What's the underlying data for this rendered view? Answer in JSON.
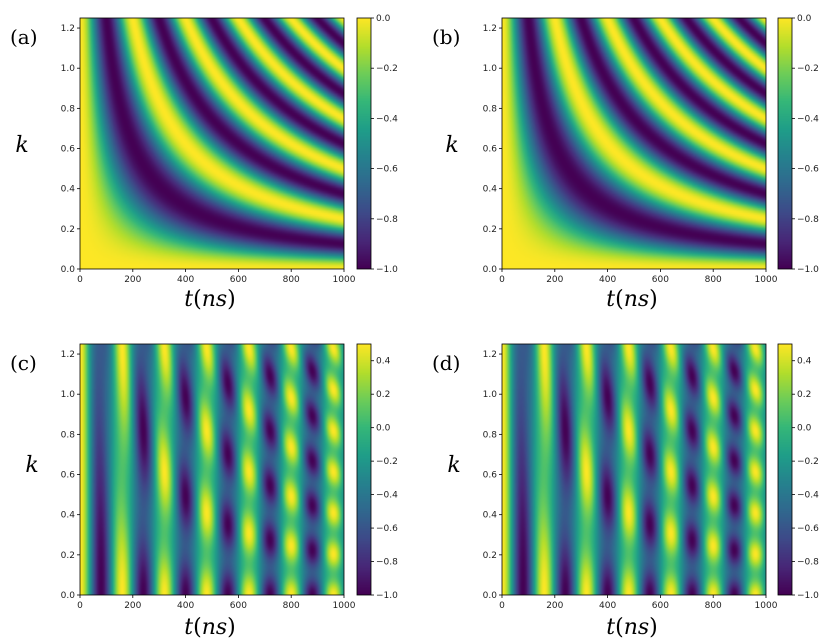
{
  "chart_data": [
    {
      "type": "heatmap",
      "panel_label": "(a)",
      "xlabel_var": "t",
      "xlabel_unit": "ns",
      "ylabel": "k",
      "xlim": [
        0,
        1000
      ],
      "ylim": [
        0,
        1.25
      ],
      "x_ticks": [
        "0",
        "200",
        "400",
        "600",
        "800",
        "1000"
      ],
      "y_ticks": [
        "0.0",
        "0.2",
        "0.4",
        "0.6",
        "0.8",
        "1.0",
        "1.2"
      ],
      "colorbar_range": [
        -1.0,
        0.0
      ],
      "colorbar_ticks": [
        "0.0",
        "−0.2",
        "−0.4",
        "−0.6",
        "−0.8",
        "−1.0"
      ],
      "colormap": "viridis",
      "pattern": "cos(0.0252*k*t) - 1 fringes forming hyperbolic bands"
    },
    {
      "type": "heatmap",
      "panel_label": "(b)",
      "xlabel_var": "t",
      "xlabel_unit": "ns",
      "ylabel": "k",
      "xlim": [
        0,
        1000
      ],
      "ylim": [
        0,
        1.25
      ],
      "x_ticks": [
        "0",
        "200",
        "400",
        "600",
        "800",
        "1000"
      ],
      "y_ticks": [
        "0.0",
        "0.2",
        "0.4",
        "0.6",
        "0.8",
        "1.0",
        "1.2"
      ],
      "colorbar_range": [
        -1.0,
        0.0
      ],
      "colorbar_ticks": [
        "0.0",
        "−0.2",
        "−0.4",
        "−0.6",
        "−0.8",
        "−1.0"
      ],
      "colormap": "viridis",
      "pattern": "cos(0.0252*k*t) - 1 fringes forming hyperbolic bands"
    },
    {
      "type": "heatmap",
      "panel_label": "(c)",
      "xlabel_var": "t",
      "xlabel_unit": "ns",
      "ylabel": "k",
      "xlim": [
        0,
        1000
      ],
      "ylim": [
        0,
        1.25
      ],
      "x_ticks": [
        "0",
        "200",
        "400",
        "600",
        "800",
        "1000"
      ],
      "y_ticks": [
        "0.0",
        "0.2",
        "0.4",
        "0.6",
        "0.8",
        "1.0",
        "1.2"
      ],
      "colorbar_range": [
        -1.0,
        0.5
      ],
      "colorbar_ticks": [
        "0.4",
        "0.2",
        "0.0",
        "−0.2",
        "−0.4",
        "−0.6",
        "−0.8",
        "−1.0"
      ],
      "colormap": "viridis",
      "pattern": "vertical oscillation (period ~160 ns) modulated into blobs along k"
    },
    {
      "type": "heatmap",
      "panel_label": "(d)",
      "xlabel_var": "t",
      "xlabel_unit": "ns",
      "ylabel": "k",
      "xlim": [
        0,
        1000
      ],
      "ylim": [
        0,
        1.25
      ],
      "x_ticks": [
        "0",
        "200",
        "400",
        "600",
        "800",
        "1000"
      ],
      "y_ticks": [
        "0.0",
        "0.2",
        "0.4",
        "0.6",
        "0.8",
        "1.0",
        "1.2"
      ],
      "colorbar_range": [
        -1.0,
        0.5
      ],
      "colorbar_ticks": [
        "0.4",
        "0.2",
        "0.0",
        "−0.2",
        "−0.4",
        "−0.6",
        "−0.8",
        "−1.0"
      ],
      "colormap": "viridis",
      "pattern": "vertical oscillation (period ~160 ns) modulated into blobs along k"
    }
  ]
}
